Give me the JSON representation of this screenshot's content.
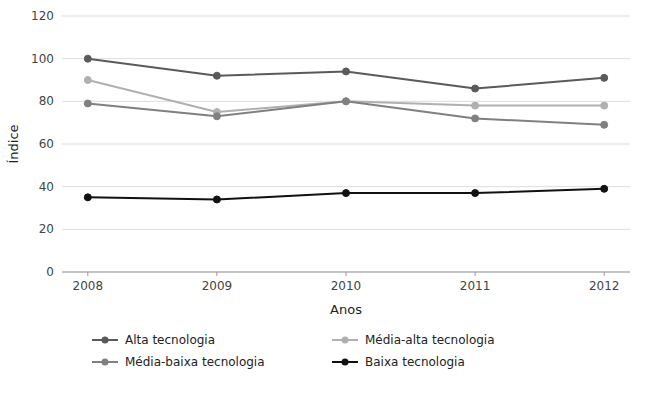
{
  "chart_data": {
    "type": "line",
    "x_label": "Anos",
    "y_label": "Índice",
    "x": [
      2008,
      2009,
      2010,
      2011,
      2012
    ],
    "xlim": [
      2007.8,
      2012.2
    ],
    "xticks": [
      2008,
      2009,
      2010,
      2011,
      2012
    ],
    "ylim": [
      0,
      120
    ],
    "yticks": [
      0,
      20,
      40,
      60,
      80,
      100,
      120
    ],
    "grid": true,
    "legend": "bottom",
    "marker": "circle",
    "series": [
      {
        "name": "Alta tecnologia",
        "color": "#5a5a5a",
        "values": [
          100,
          92,
          94,
          86,
          91
        ]
      },
      {
        "name": "Média-alta tecnologia",
        "color": "#b0b0b0",
        "values": [
          90,
          75,
          80,
          78,
          78
        ]
      },
      {
        "name": "Média-baixa tecnologia",
        "color": "#808080",
        "values": [
          79,
          73,
          80,
          72,
          69
        ]
      },
      {
        "name": "Baixa tecnologia",
        "color": "#111111",
        "values": [
          35,
          34,
          37,
          37,
          39
        ]
      }
    ]
  }
}
